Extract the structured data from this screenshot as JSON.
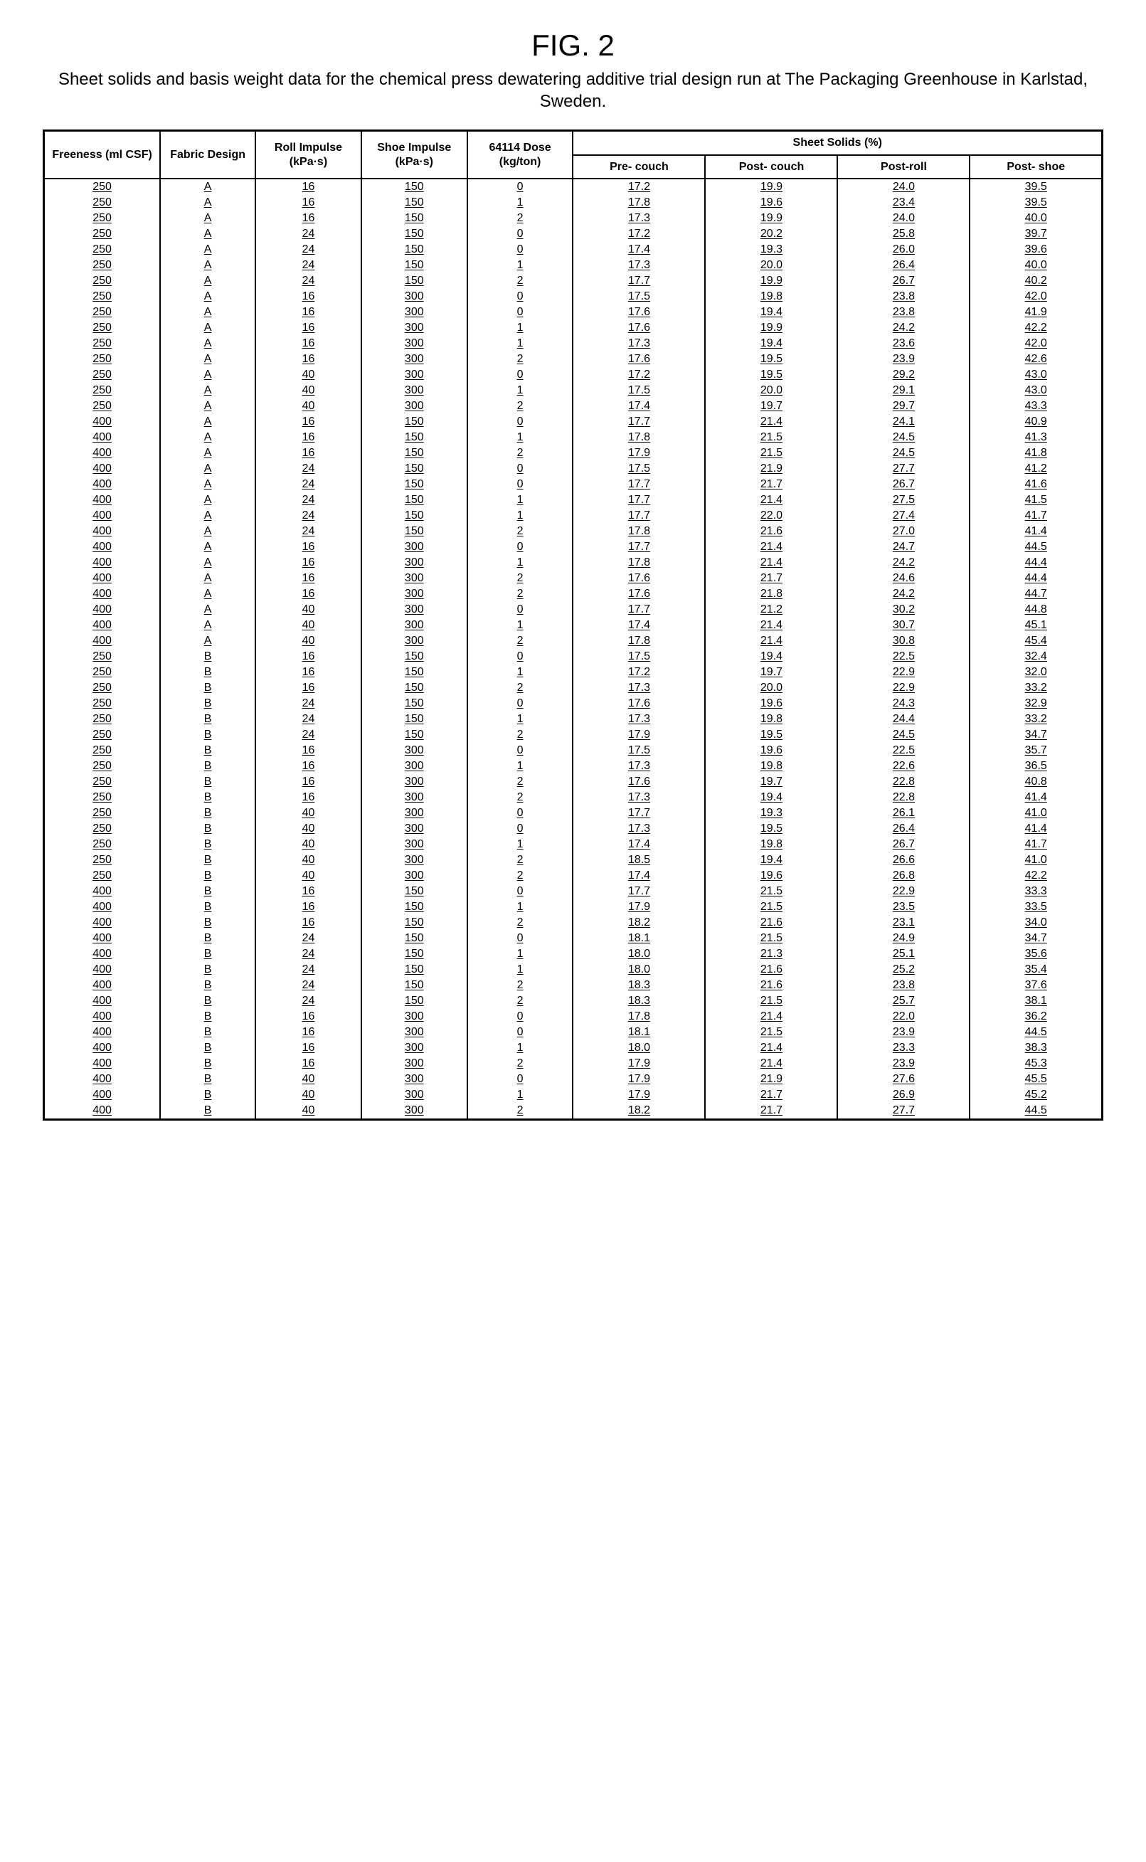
{
  "figure": {
    "title": "FIG. 2",
    "caption": "Sheet solids and basis weight data for the chemical press dewatering additive trial design run at The Packaging Greenhouse in Karlstad, Sweden."
  },
  "table": {
    "group_header": "Sheet Solids (%)",
    "columns": [
      "Freeness\n(ml CSF)",
      "Fabric\nDesign",
      "Roll\nImpulse\n(kPa·s)",
      "Shoe\nImpulse\n(kPa·s)",
      "64114\nDose\n(kg/ton)",
      "Pre-\ncouch",
      "Post-\ncouch",
      "Post-roll",
      "Post-\nshoe"
    ],
    "rows": [
      [
        "250",
        "A",
        "16",
        "150",
        "0",
        "17.2",
        "19.9",
        "24.0",
        "39.5"
      ],
      [
        "250",
        "A",
        "16",
        "150",
        "1",
        "17.8",
        "19.6",
        "23.4",
        "39.5"
      ],
      [
        "250",
        "A",
        "16",
        "150",
        "2",
        "17.3",
        "19.9",
        "24.0",
        "40.0"
      ],
      [
        "250",
        "A",
        "24",
        "150",
        "0",
        "17.2",
        "20.2",
        "25.8",
        "39.7"
      ],
      [
        "250",
        "A",
        "24",
        "150",
        "0",
        "17.4",
        "19.3",
        "26.0",
        "39.6"
      ],
      [
        "250",
        "A",
        "24",
        "150",
        "1",
        "17.3",
        "20.0",
        "26.4",
        "40.0"
      ],
      [
        "250",
        "A",
        "24",
        "150",
        "2",
        "17.7",
        "19.9",
        "26.7",
        "40.2"
      ],
      [
        "250",
        "A",
        "16",
        "300",
        "0",
        "17.5",
        "19.8",
        "23.8",
        "42.0"
      ],
      [
        "250",
        "A",
        "16",
        "300",
        "0",
        "17.6",
        "19.4",
        "23.8",
        "41.9"
      ],
      [
        "250",
        "A",
        "16",
        "300",
        "1",
        "17.6",
        "19.9",
        "24.2",
        "42.2"
      ],
      [
        "250",
        "A",
        "16",
        "300",
        "1",
        "17.3",
        "19.4",
        "23.6",
        "42.0"
      ],
      [
        "250",
        "A",
        "16",
        "300",
        "2",
        "17.6",
        "19.5",
        "23.9",
        "42.6"
      ],
      [
        "250",
        "A",
        "40",
        "300",
        "0",
        "17.2",
        "19.5",
        "29.2",
        "43.0"
      ],
      [
        "250",
        "A",
        "40",
        "300",
        "1",
        "17.5",
        "20.0",
        "29.1",
        "43.0"
      ],
      [
        "250",
        "A",
        "40",
        "300",
        "2",
        "17.4",
        "19.7",
        "29.7",
        "43.3"
      ],
      [
        "400",
        "A",
        "16",
        "150",
        "0",
        "17.7",
        "21.4",
        "24.1",
        "40.9"
      ],
      [
        "400",
        "A",
        "16",
        "150",
        "1",
        "17.8",
        "21.5",
        "24.5",
        "41.3"
      ],
      [
        "400",
        "A",
        "16",
        "150",
        "2",
        "17.9",
        "21.5",
        "24.5",
        "41.8"
      ],
      [
        "400",
        "A",
        "24",
        "150",
        "0",
        "17.5",
        "21.9",
        "27.7",
        "41.2"
      ],
      [
        "400",
        "A",
        "24",
        "150",
        "0",
        "17.7",
        "21.7",
        "26.7",
        "41.6"
      ],
      [
        "400",
        "A",
        "24",
        "150",
        "1",
        "17.7",
        "21.4",
        "27.5",
        "41.5"
      ],
      [
        "400",
        "A",
        "24",
        "150",
        "1",
        "17.7",
        "22.0",
        "27.4",
        "41.7"
      ],
      [
        "400",
        "A",
        "24",
        "150",
        "2",
        "17.8",
        "21.6",
        "27.0",
        "41.4"
      ],
      [
        "400",
        "A",
        "16",
        "300",
        "0",
        "17.7",
        "21.4",
        "24.7",
        "44.5"
      ],
      [
        "400",
        "A",
        "16",
        "300",
        "1",
        "17.8",
        "21.4",
        "24.2",
        "44.4"
      ],
      [
        "400",
        "A",
        "16",
        "300",
        "2",
        "17.6",
        "21.7",
        "24.6",
        "44.4"
      ],
      [
        "400",
        "A",
        "16",
        "300",
        "2",
        "17.6",
        "21.8",
        "24.2",
        "44.7"
      ],
      [
        "400",
        "A",
        "40",
        "300",
        "0",
        "17.7",
        "21.2",
        "30.2",
        "44.8"
      ],
      [
        "400",
        "A",
        "40",
        "300",
        "1",
        "17.4",
        "21.4",
        "30.7",
        "45.1"
      ],
      [
        "400",
        "A",
        "40",
        "300",
        "2",
        "17.8",
        "21.4",
        "30.8",
        "45.4"
      ],
      [
        "250",
        "B",
        "16",
        "150",
        "0",
        "17.5",
        "19.4",
        "22.5",
        "32.4"
      ],
      [
        "250",
        "B",
        "16",
        "150",
        "1",
        "17.2",
        "19.7",
        "22.9",
        "32.0"
      ],
      [
        "250",
        "B",
        "16",
        "150",
        "2",
        "17.3",
        "20.0",
        "22.9",
        "33.2"
      ],
      [
        "250",
        "B",
        "24",
        "150",
        "0",
        "17.6",
        "19.6",
        "24.3",
        "32.9"
      ],
      [
        "250",
        "B",
        "24",
        "150",
        "1",
        "17.3",
        "19.8",
        "24.4",
        "33.2"
      ],
      [
        "250",
        "B",
        "24",
        "150",
        "2",
        "17.9",
        "19.5",
        "24.5",
        "34.7"
      ],
      [
        "250",
        "B",
        "16",
        "300",
        "0",
        "17.5",
        "19.6",
        "22.5",
        "35.7"
      ],
      [
        "250",
        "B",
        "16",
        "300",
        "1",
        "17.3",
        "19.8",
        "22.6",
        "36.5"
      ],
      [
        "250",
        "B",
        "16",
        "300",
        "2",
        "17.6",
        "19.7",
        "22.8",
        "40.8"
      ],
      [
        "250",
        "B",
        "16",
        "300",
        "2",
        "17.3",
        "19.4",
        "22.8",
        "41.4"
      ],
      [
        "250",
        "B",
        "40",
        "300",
        "0",
        "17.7",
        "19.3",
        "26.1",
        "41.0"
      ],
      [
        "250",
        "B",
        "40",
        "300",
        "0",
        "17.3",
        "19.5",
        "26.4",
        "41.4"
      ],
      [
        "250",
        "B",
        "40",
        "300",
        "1",
        "17.4",
        "19.8",
        "26.7",
        "41.7"
      ],
      [
        "250",
        "B",
        "40",
        "300",
        "2",
        "18.5",
        "19.4",
        "26.6",
        "41.0"
      ],
      [
        "250",
        "B",
        "40",
        "300",
        "2",
        "17.4",
        "19.6",
        "26.8",
        "42.2"
      ],
      [
        "400",
        "B",
        "16",
        "150",
        "0",
        "17.7",
        "21.5",
        "22.9",
        "33.3"
      ],
      [
        "400",
        "B",
        "16",
        "150",
        "1",
        "17.9",
        "21.5",
        "23.5",
        "33.5"
      ],
      [
        "400",
        "B",
        "16",
        "150",
        "2",
        "18.2",
        "21.6",
        "23.1",
        "34.0"
      ],
      [
        "400",
        "B",
        "24",
        "150",
        "0",
        "18.1",
        "21.5",
        "24.9",
        "34.7"
      ],
      [
        "400",
        "B",
        "24",
        "150",
        "1",
        "18.0",
        "21.3",
        "25.1",
        "35.6"
      ],
      [
        "400",
        "B",
        "24",
        "150",
        "1",
        "18.0",
        "21.6",
        "25.2",
        "35.4"
      ],
      [
        "400",
        "B",
        "24",
        "150",
        "2",
        "18.3",
        "21.6",
        "23.8",
        "37.6"
      ],
      [
        "400",
        "B",
        "24",
        "150",
        "2",
        "18.3",
        "21.5",
        "25.7",
        "38.1"
      ],
      [
        "400",
        "B",
        "16",
        "300",
        "0",
        "17.8",
        "21.4",
        "22.0",
        "36.2"
      ],
      [
        "400",
        "B",
        "16",
        "300",
        "0",
        "18.1",
        "21.5",
        "23.9",
        "44.5"
      ],
      [
        "400",
        "B",
        "16",
        "300",
        "1",
        "18.0",
        "21.4",
        "23.3",
        "38.3"
      ],
      [
        "400",
        "B",
        "16",
        "300",
        "2",
        "17.9",
        "21.4",
        "23.9",
        "45.3"
      ],
      [
        "400",
        "B",
        "40",
        "300",
        "0",
        "17.9",
        "21.9",
        "27.6",
        "45.5"
      ],
      [
        "400",
        "B",
        "40",
        "300",
        "1",
        "17.9",
        "21.7",
        "26.9",
        "45.2"
      ],
      [
        "400",
        "B",
        "40",
        "300",
        "2",
        "18.2",
        "21.7",
        "27.7",
        "44.5"
      ]
    ]
  },
  "style": {
    "title_fontsize": 42,
    "caption_fontsize": 24,
    "header_fontsize": 16,
    "cell_fontsize": 16,
    "border_color": "#000000",
    "background_color": "#ffffff",
    "text_color": "#000000",
    "outer_border_width": 3,
    "inner_border_width": 2
  }
}
